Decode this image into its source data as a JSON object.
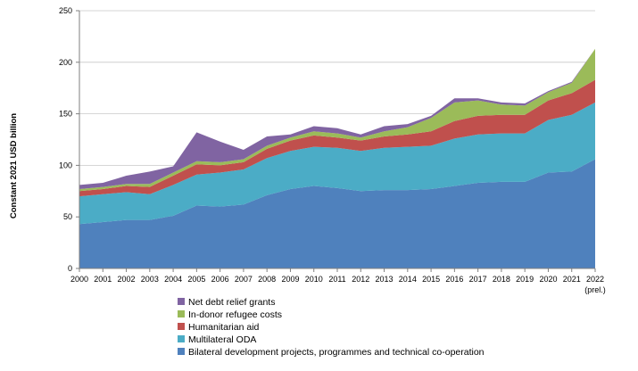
{
  "chart_data": {
    "type": "area",
    "stacked": true,
    "ylabel": "Constant 2021 USD billion",
    "xlabel": "",
    "ylim": [
      0,
      250
    ],
    "yticks": [
      0,
      50,
      100,
      150,
      200,
      250
    ],
    "grid": true,
    "legend_position": "bottom",
    "x": [
      "2000",
      "2001",
      "2002",
      "2003",
      "2004",
      "2005",
      "2006",
      "2007",
      "2008",
      "2009",
      "2010",
      "2011",
      "2012",
      "2013",
      "2014",
      "2015",
      "2016",
      "2017",
      "2018",
      "2019",
      "2020",
      "2021",
      "2022"
    ],
    "x_annotation": {
      "index": 22,
      "text": "(prel.)"
    },
    "series": [
      {
        "name": "Bilateral development projects, programmes and technical co-operation",
        "color": "#4F81BD",
        "values": [
          43,
          45,
          47,
          47,
          51,
          61,
          60,
          62,
          71,
          77,
          80,
          78,
          75,
          76,
          76,
          77,
          80,
          83,
          84,
          84,
          93,
          94,
          106
        ]
      },
      {
        "name": "Multilateral ODA",
        "color": "#4BACC6",
        "values": [
          27,
          27,
          27,
          25,
          30,
          30,
          33,
          34,
          36,
          37,
          38,
          39,
          39,
          41,
          42,
          42,
          46,
          47,
          47,
          47,
          51,
          55,
          55
        ]
      },
      {
        "name": "Humanitarian aid",
        "color": "#C0504D",
        "values": [
          5,
          5,
          6,
          7,
          9,
          10,
          7,
          7,
          9,
          10,
          11,
          10,
          10,
          11,
          12,
          14,
          17,
          18,
          18,
          18,
          19,
          21,
          22
        ]
      },
      {
        "name": "In-donor refugee costs",
        "color": "#9BBB59",
        "values": [
          2,
          2,
          2,
          3,
          3,
          3,
          3,
          3,
          3,
          3,
          4,
          4,
          3,
          5,
          7,
          13,
          18,
          15,
          10,
          9,
          8,
          10,
          30
        ]
      },
      {
        "name": "Net debt relief grants",
        "color": "#8064A2",
        "values": [
          4,
          4,
          8,
          12,
          6,
          28,
          20,
          9,
          9,
          3,
          5,
          5,
          3,
          5,
          3,
          2,
          4,
          2,
          2,
          2,
          1,
          1,
          0
        ]
      }
    ]
  }
}
